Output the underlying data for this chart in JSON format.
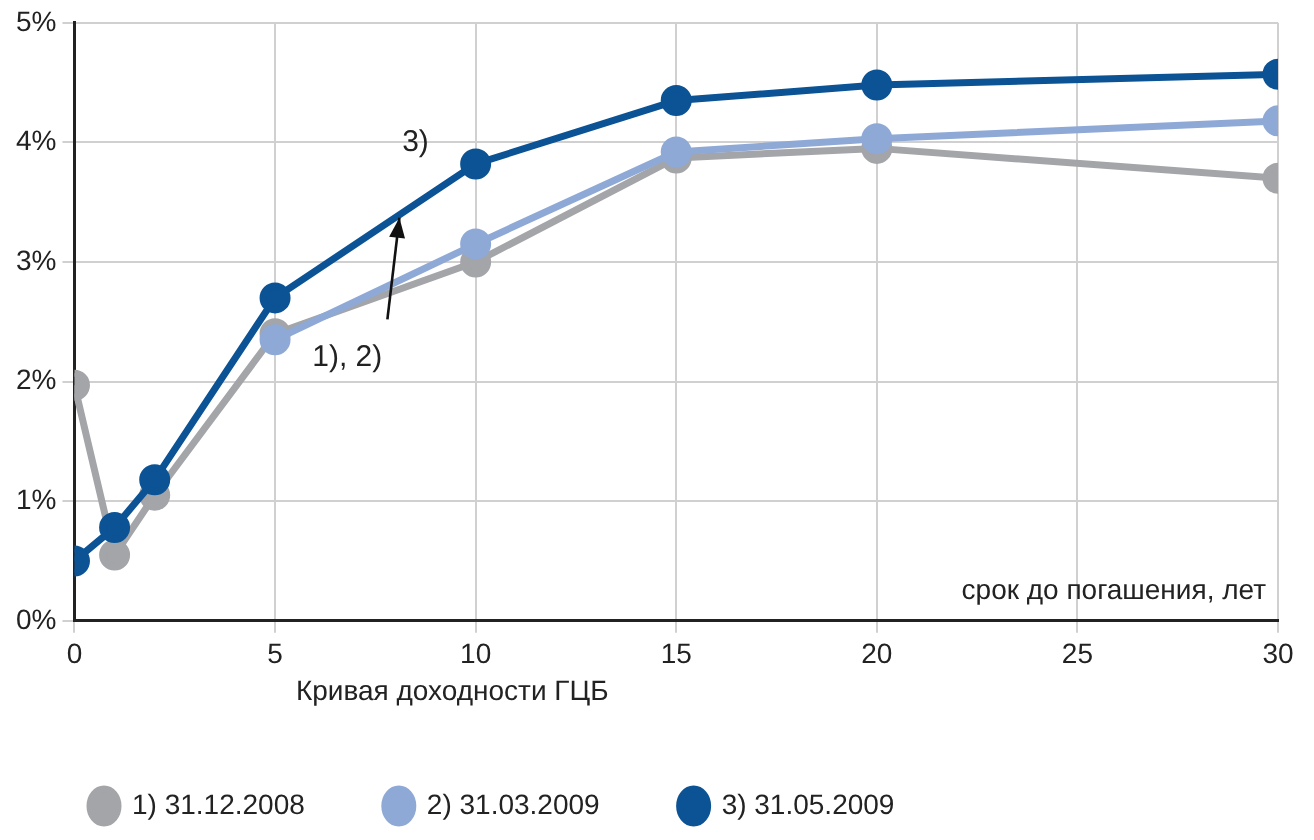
{
  "chart_data": {
    "type": "line",
    "xlabel": "срок до погашения, лет",
    "legend_title": "Кривая доходности ГЦБ",
    "x": [
      0,
      1,
      2,
      5,
      10,
      15,
      20,
      30
    ],
    "series": [
      {
        "name": "1) 31.12.2008",
        "color": "#a3a5a8",
        "values": [
          1.97,
          0.55,
          1.05,
          2.4,
          3.0,
          3.87,
          3.95,
          3.7
        ]
      },
      {
        "name": "2) 31.03.2009",
        "color": "#8fa9d6",
        "values": [
          null,
          null,
          null,
          2.35,
          3.15,
          3.92,
          4.03,
          4.18
        ]
      },
      {
        "name": "3) 31.05.2009",
        "color": "#0b5394",
        "values": [
          0.5,
          0.78,
          1.18,
          2.7,
          3.82,
          4.35,
          4.48,
          4.57
        ]
      }
    ],
    "xlim": [
      0,
      30
    ],
    "xticks": [
      0,
      5,
      10,
      15,
      20,
      25,
      30
    ],
    "ylim": [
      0,
      5
    ],
    "yticks": [
      {
        "value": 0,
        "label": "0%"
      },
      {
        "value": 1,
        "label": "1%"
      },
      {
        "value": 2,
        "label": "2%"
      },
      {
        "value": 3,
        "label": "3%"
      },
      {
        "value": 4,
        "label": "4%"
      },
      {
        "value": 5,
        "label": "5%"
      }
    ],
    "grid": true,
    "legend": "bottom",
    "marker": "circle",
    "line_style": "solid",
    "annotations": [
      "3)",
      {
        "text": "1), 2)",
        "x": 8.1,
        "y": 3.37
      }
    ]
  }
}
